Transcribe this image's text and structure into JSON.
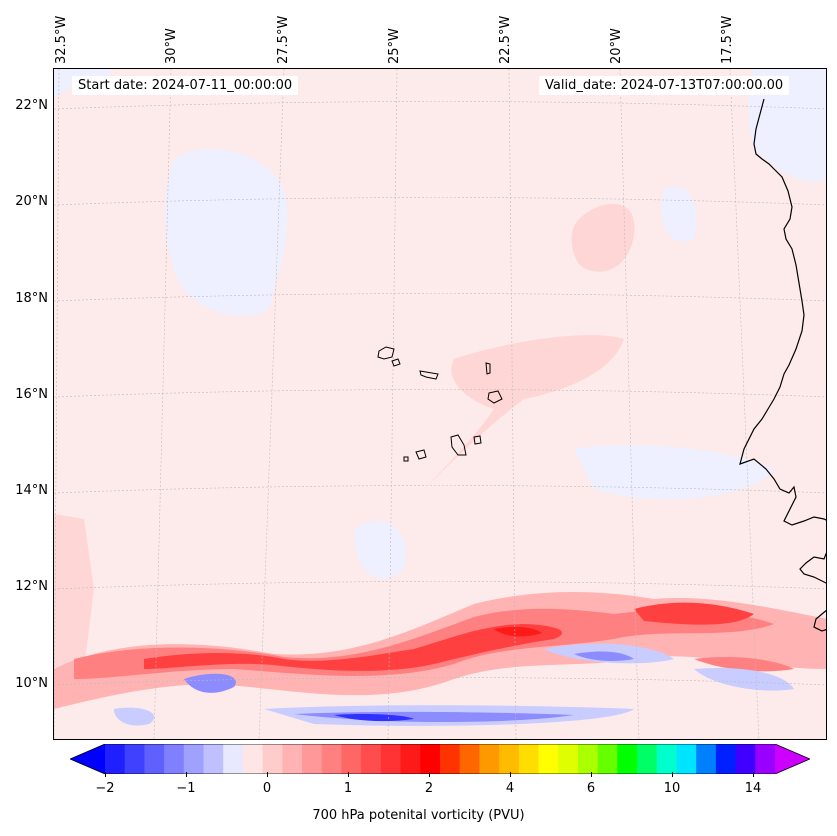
{
  "map": {
    "start_date": "Start date: 2024-07-11_00:00:00",
    "valid_date": "Valid_date: 2024-07-13T07:00:00.00",
    "lon_labels": [
      "32.5°W",
      "30°W",
      "27.5°W",
      "25°W",
      "22.5°W",
      "20°W",
      "17.5°W"
    ],
    "lat_labels": [
      "22°N",
      "20°N",
      "18°N",
      "16°N",
      "14°N",
      "12°N",
      "10°N"
    ],
    "colors": {
      "light_pink": "#fde6e6",
      "pink": "#ffd6d6",
      "mid_pink": "#ffb3b3",
      "rose": "#ff8080",
      "red": "#ff4040",
      "deep_red": "#ff1a1a",
      "pale_blue": "#eef0ff",
      "light_blue": "#c8ccff",
      "mid_blue": "#8c8cff",
      "blue": "#3030ff",
      "coast": "#000000"
    }
  },
  "colorbar": {
    "label": "700 hPa potenital vorticity (PVU)",
    "ticks": [
      "−2",
      "−1",
      "0",
      "1",
      "2",
      "4",
      "6",
      "10",
      "14"
    ],
    "levels_count": 34,
    "colors": [
      "#0000ff",
      "#2020ff",
      "#4040ff",
      "#6060ff",
      "#8080ff",
      "#a0a0ff",
      "#c0c0ff",
      "#e8e8ff",
      "#ffe6e6",
      "#ffcccc",
      "#ffb3b3",
      "#ff9999",
      "#ff8080",
      "#ff6666",
      "#ff4d4d",
      "#ff3333",
      "#ff1a1a",
      "#ff0000",
      "#ff3300",
      "#ff6600",
      "#ff9900",
      "#ffbb00",
      "#ffdd00",
      "#ffff00",
      "#ddff00",
      "#aaff00",
      "#66ff00",
      "#00ff00",
      "#00ff66",
      "#00ffcc",
      "#00e5ff",
      "#0080ff",
      "#0020ff",
      "#4000ff",
      "#9900ff",
      "#cc00ff"
    ]
  }
}
